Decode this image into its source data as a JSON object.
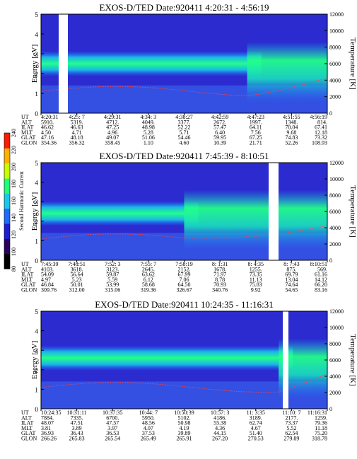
{
  "colorbar": {
    "label": "Second Harmonic Current",
    "ticks": [
      "80",
      "100",
      "120",
      "140",
      "160",
      "180",
      "200",
      "220",
      "240"
    ],
    "colors": [
      "#000000",
      "#2a0060",
      "#1d1dd4",
      "#1e6bff",
      "#19c7e8",
      "#22ff77",
      "#c8ff00",
      "#ffb000",
      "#ff1a00"
    ]
  },
  "chart_data": [
    {
      "type": "heatmap",
      "title": "EXOS-D/TED   Date:920411   4:20:31 - 4:56:19",
      "ylabel": "Energy [eV]",
      "y2label": "Temperature [K]",
      "ylim": [
        0,
        5
      ],
      "y2lim": [
        0,
        12000
      ],
      "yticks": [
        "0",
        "1",
        "2",
        "3",
        "4",
        "5"
      ],
      "y2ticks": [
        "0",
        "2000",
        "4000",
        "6000",
        "8000",
        "10000",
        "12000"
      ],
      "table_labels": [
        "UT",
        "ALT",
        "ILAT",
        "MLT",
        "GLAT",
        "GLON"
      ],
      "columns": [
        {
          "UT": "4:20:31",
          "ALT": "5910.",
          "ILAT": "46.62",
          "MLT": "4.50",
          "GLAT": "47.16",
          "GLON": "354.36"
        },
        {
          "UT": "4:25: 7",
          "ALT": "5319.",
          "ILAT": "46.63",
          "MLT": "4.71",
          "GLAT": "48.18",
          "GLON": "356.32"
        },
        {
          "UT": "4:29:31",
          "ALT": "4712.",
          "ILAT": "47.25",
          "MLT": "4.96",
          "GLAT": "49.07",
          "GLON": "358.45"
        },
        {
          "UT": "4:34: 3",
          "ALT": "4049.",
          "ILAT": "48.98",
          "MLT": "5.28",
          "GLAT": "51.06",
          "GLON": "1.10"
        },
        {
          "UT": "4:38:27",
          "ALT": "3377.",
          "ILAT": "52.22",
          "MLT": "5.71",
          "GLAT": "54.46",
          "GLON": "4.60"
        },
        {
          "UT": "4:42:59",
          "ALT": "2672.",
          "ILAT": "57.47",
          "MLT": "6.40",
          "GLAT": "59.95",
          "GLON": "10.39"
        },
        {
          "UT": "4:47:23",
          "ALT": "1997.",
          "ILAT": "64.11",
          "MLT": "7.56",
          "GLAT": "67.25",
          "GLON": "21.71"
        },
        {
          "UT": "4:51:55",
          "ALT": "1348.",
          "ILAT": "70.04",
          "MLT": "9.68",
          "GLAT": "74.83",
          "GLON": "52.26"
        },
        {
          "UT": "4:56:19",
          "ALT": "814.",
          "ILAT": "67.41",
          "MLT": "12.18",
          "GLAT": "73.32",
          "GLON": "108.93"
        }
      ],
      "features": {
        "band_center_ev": 2.5,
        "data_gap_ut": "4:21:30",
        "right_bright_region": "4:47 - 4:56"
      }
    },
    {
      "type": "heatmap",
      "title": "EXOS-D/TED   Date:920411   7:45:39 - 8:10:51",
      "ylabel": "Energy [eV]",
      "y2label": "Temperature [K]",
      "ylim": [
        0,
        5
      ],
      "y2lim": [
        0,
        12000
      ],
      "yticks": [
        "0",
        "1",
        "2",
        "3",
        "4",
        "5"
      ],
      "y2ticks": [
        "0",
        "2000",
        "4000",
        "6000",
        "8000",
        "10000",
        "12000"
      ],
      "table_labels": [
        "UT",
        "ALT",
        "ILAT",
        "MLT",
        "GLAT",
        "GLON"
      ],
      "columns": [
        {
          "UT": "7:45:39",
          "ALT": "4103.",
          "ILAT": "54.09",
          "MLT": "4.97",
          "GLAT": "46.84",
          "GLON": "309.76"
        },
        {
          "UT": "7:48:51",
          "ALT": "3618.",
          "ILAT": "56.64",
          "MLT": "5.23",
          "GLAT": "50.01",
          "GLON": "312.00"
        },
        {
          "UT": "7:52: 3",
          "ALT": "3123.",
          "ILAT": "59.87",
          "MLT": "5.59",
          "GLAT": "53.99",
          "GLON": "315.06"
        },
        {
          "UT": "7:55: 7",
          "ALT": "2645.",
          "ILAT": "63.62",
          "MLT": "6.12",
          "GLAT": "58.68",
          "GLON": "319.36"
        },
        {
          "UT": "7:58:19",
          "ALT": "2152.",
          "ILAT": "67.99",
          "MLT": "7.06",
          "GLAT": "64.50",
          "GLON": "326.67"
        },
        {
          "UT": "8: 1:31",
          "ALT": "1678.",
          "ILAT": "71.97",
          "MLT": "8.78",
          "GLAT": "70.93",
          "GLON": "340.76"
        },
        {
          "UT": "8: 4:35",
          "ALT": "1255.",
          "ILAT": "73.35",
          "MLT": "11.13",
          "GLAT": "75.83",
          "GLON": "9.92"
        },
        {
          "UT": "8: 7:43",
          "ALT": "875.",
          "ILAT": "69.79",
          "MLT": "13.04",
          "GLAT": "74.64",
          "GLON": "54.65"
        },
        {
          "UT": "8:10:51",
          "ALT": "569.",
          "ILAT": "61.16",
          "MLT": "14.12",
          "GLAT": "66.20",
          "GLON": "83.16"
        }
      ],
      "features": {
        "band_center_ev": 2.4,
        "data_gap_ut": "8:06:30",
        "right_bright_region": "7:58 - 8:10"
      }
    },
    {
      "type": "heatmap",
      "title": "EXOS-D/TED   Date:920411   10:24:35 - 11:16:31",
      "ylabel": "Energy [eV]",
      "y2label": "Temperature [K]",
      "ylim": [
        0,
        5
      ],
      "y2lim": [
        0,
        12000
      ],
      "yticks": [
        "0",
        "1",
        "2",
        "3",
        "4",
        "5"
      ],
      "y2ticks": [
        "0",
        "2000",
        "4000",
        "6000",
        "8000",
        "10000",
        "12000"
      ],
      "table_labels": [
        "UT",
        "ALT",
        "ILAT",
        "MLT",
        "GLAT",
        "GLON"
      ],
      "columns": [
        {
          "UT": "10:24:35",
          "ALT": "7884.",
          "ILAT": "48.07",
          "MLT": "3.81",
          "GLAT": "36.93",
          "GLON": "266.26"
        },
        {
          "UT": "10:31:11",
          "ALT": "7335.",
          "ILAT": "47.51",
          "MLT": "3.89",
          "GLAT": "36.43",
          "GLON": "265.83"
        },
        {
          "UT": "10:37:35",
          "ALT": "6700.",
          "ILAT": "47.57",
          "MLT": "3.97",
          "GLAT": "36.53",
          "GLON": "265.54"
        },
        {
          "UT": "10:44: 7",
          "ALT": "5950.",
          "ILAT": "48.56",
          "MLT": "4.07",
          "GLAT": "37.53",
          "GLON": "265.49"
        },
        {
          "UT": "10:50:39",
          "ALT": "5102.",
          "ILAT": "50.98",
          "MLT": "4.19",
          "GLAT": "39.89",
          "GLON": "265.91"
        },
        {
          "UT": "10:57: 3",
          "ALT": "4186.",
          "ILAT": "55.38",
          "MLT": "4.36",
          "GLAT": "44.15",
          "GLON": "267.20"
        },
        {
          "UT": "11: 3:35",
          "ALT": "3189.",
          "ILAT": "62.74",
          "MLT": "4.67",
          "GLAT": "51.40",
          "GLON": "270.53"
        },
        {
          "UT": "11:10: 7",
          "ALT": "2177.",
          "ILAT": "73.37",
          "MLT": "5.52",
          "GLAT": "62.54",
          "GLON": "279.89"
        },
        {
          "UT": "11:16:31",
          "ALT": "1259.",
          "ILAT": "79.36",
          "MLT": "11.18",
          "GLAT": "75.20",
          "GLON": "318.78"
        }
      ],
      "features": {
        "band_center_ev": 2.6,
        "data_gap_ut": "11:07:00",
        "right_bright_region": "11:10 - 11:16"
      }
    }
  ]
}
